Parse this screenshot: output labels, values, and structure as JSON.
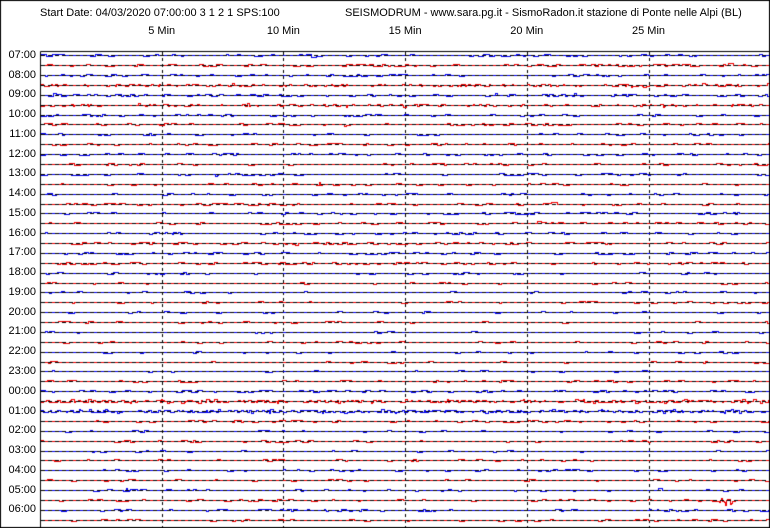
{
  "header": {
    "start_date": "Start Date: 04/03/2020 07:00:00 3 1 2 1 SPS:100",
    "title": "SEISMODRUM - www.sara.pg.it - SismoRadon.it stazione di Ponte nelle Alpi (BL)"
  },
  "chart_data": {
    "type": "line",
    "chart_kind": "helicorder-seismic-drum",
    "title": "SEISMODRUM - www.sara.pg.it - SismoRadon.it stazione di Ponte nelle Alpi (BL)",
    "start_date_line": "Start Date: 04/03/2020 07:00:00 3 1 2 1 SPS:100",
    "minutes_per_row": 30,
    "x_tick_minutes": [
      5,
      10,
      15,
      20,
      25
    ],
    "x_tick_labels": [
      "5 Min",
      "10 Min",
      "15 Min",
      "20 Min",
      "25 Min"
    ],
    "grid": "dashed",
    "colors": {
      "even_row_trace": "#0000ee",
      "odd_row_trace": "#ee0000",
      "grid_and_text": "#000000",
      "background": "#ffffff"
    },
    "rows": [
      {
        "time": "07:00",
        "label": "07:00",
        "color": "blue",
        "density": 0.65,
        "amp": 1.4,
        "bursts": [
          [
            24.7,
            2,
            1.5
          ],
          [
            4.5,
            1.5,
            0.8
          ]
        ]
      },
      {
        "time": "07:30",
        "label": "",
        "color": "red",
        "density": 0.7,
        "amp": 1.6,
        "bursts": [
          [
            16.6,
            2.5,
            0.3
          ]
        ]
      },
      {
        "time": "08:00",
        "label": "08:00",
        "color": "blue",
        "density": 0.6,
        "amp": 1.5,
        "bursts": [
          [
            4.5,
            2,
            0.8
          ],
          [
            23,
            2,
            1.2
          ]
        ]
      },
      {
        "time": "08:30",
        "label": "",
        "color": "red",
        "density": 0.75,
        "amp": 1.7,
        "bursts": [
          [
            12.3,
            2.5,
            0.4
          ]
        ]
      },
      {
        "time": "09:00",
        "label": "09:00",
        "color": "blue",
        "density": 0.7,
        "amp": 1.5,
        "bursts": []
      },
      {
        "time": "09:30",
        "label": "",
        "color": "red",
        "density": 0.7,
        "amp": 1.7,
        "bursts": [
          [
            12.6,
            4,
            0.15
          ]
        ]
      },
      {
        "time": "10:00",
        "label": "10:00",
        "color": "blue",
        "density": 0.5,
        "amp": 1.3,
        "bursts": [
          [
            2.5,
            2,
            0.3
          ],
          [
            11.1,
            2.5,
            0.2
          ]
        ]
      },
      {
        "time": "10:30",
        "label": "",
        "color": "red",
        "density": 0.5,
        "amp": 1.4,
        "bursts": [
          [
            20,
            2,
            0.3
          ]
        ]
      },
      {
        "time": "11:00",
        "label": "11:00",
        "color": "blue",
        "density": 0.45,
        "amp": 1.3,
        "bursts": []
      },
      {
        "time": "11:30",
        "label": "",
        "color": "red",
        "density": 0.45,
        "amp": 1.3,
        "bursts": []
      },
      {
        "time": "12:00",
        "label": "12:00",
        "color": "blue",
        "density": 0.45,
        "amp": 1.3,
        "bursts": [
          [
            6.2,
            2.5,
            0.3
          ]
        ]
      },
      {
        "time": "12:30",
        "label": "",
        "color": "red",
        "density": 0.4,
        "amp": 1.3,
        "bursts": [
          [
            10.2,
            2,
            0.2
          ]
        ]
      },
      {
        "time": "13:00",
        "label": "13:00",
        "color": "blue",
        "density": 0.45,
        "amp": 1.3,
        "bursts": [
          [
            7.2,
            2,
            0.3
          ]
        ]
      },
      {
        "time": "13:30",
        "label": "",
        "color": "red",
        "density": 0.4,
        "amp": 1.3,
        "bursts": [
          [
            11.4,
            4,
            0.15
          ]
        ]
      },
      {
        "time": "14:00",
        "label": "14:00",
        "color": "blue",
        "density": 0.45,
        "amp": 1.3,
        "bursts": [
          [
            1.0,
            3,
            0.15
          ]
        ]
      },
      {
        "time": "14:30",
        "label": "",
        "color": "red",
        "density": 0.45,
        "amp": 1.4,
        "bursts": [
          [
            8.2,
            2,
            0.25
          ]
        ]
      },
      {
        "time": "15:00",
        "label": "15:00",
        "color": "blue",
        "density": 0.5,
        "amp": 1.4,
        "bursts": [
          [
            8.6,
            2,
            0.4
          ],
          [
            11.9,
            2,
            0.3
          ]
        ]
      },
      {
        "time": "15:30",
        "label": "",
        "color": "red",
        "density": 0.55,
        "amp": 1.5,
        "bursts": []
      },
      {
        "time": "16:00",
        "label": "16:00",
        "color": "blue",
        "density": 0.55,
        "amp": 1.5,
        "bursts": [
          [
            5.3,
            2.5,
            0.5
          ]
        ]
      },
      {
        "time": "16:30",
        "label": "",
        "color": "red",
        "density": 0.6,
        "amp": 1.6,
        "bursts": [
          [
            4.5,
            2,
            0.6
          ],
          [
            8,
            2,
            0.8
          ]
        ]
      },
      {
        "time": "17:00",
        "label": "17:00",
        "color": "blue",
        "density": 0.6,
        "amp": 1.5,
        "bursts": [
          [
            27,
            2,
            0.8
          ]
        ]
      },
      {
        "time": "17:30",
        "label": "",
        "color": "red",
        "density": 0.6,
        "amp": 1.6,
        "bursts": [
          [
            2.9,
            2.5,
            0.5
          ],
          [
            11,
            2.5,
            1.6
          ]
        ]
      },
      {
        "time": "18:00",
        "label": "18:00",
        "color": "blue",
        "density": 0.4,
        "amp": 1.3,
        "bursts": [
          [
            5.9,
            3,
            0.2
          ]
        ]
      },
      {
        "time": "18:30",
        "label": "",
        "color": "red",
        "density": 0.3,
        "amp": 1.2,
        "bursts": []
      },
      {
        "time": "19:00",
        "label": "19:00",
        "color": "blue",
        "density": 0.3,
        "amp": 1.2,
        "bursts": [
          [
            6.0,
            3.5,
            0.2
          ]
        ]
      },
      {
        "time": "19:30",
        "label": "",
        "color": "red",
        "density": 0.3,
        "amp": 1.2,
        "bursts": []
      },
      {
        "time": "20:00",
        "label": "20:00",
        "color": "blue",
        "density": 0.18,
        "amp": 1.1,
        "bursts": []
      },
      {
        "time": "20:30",
        "label": "",
        "color": "red",
        "density": 0.18,
        "amp": 1.1,
        "bursts": []
      },
      {
        "time": "21:00",
        "label": "21:00",
        "color": "blue",
        "density": 0.18,
        "amp": 1.1,
        "bursts": []
      },
      {
        "time": "21:30",
        "label": "",
        "color": "red",
        "density": 0.2,
        "amp": 1.1,
        "bursts": [
          [
            5.5,
            2,
            0.3
          ]
        ]
      },
      {
        "time": "22:00",
        "label": "22:00",
        "color": "blue",
        "density": 0.2,
        "amp": 1.1,
        "bursts": [
          [
            6.2,
            2,
            0.3
          ]
        ]
      },
      {
        "time": "22:30",
        "label": "",
        "color": "red",
        "density": 0.2,
        "amp": 1.1,
        "bursts": [
          [
            7.0,
            2,
            0.2
          ]
        ]
      },
      {
        "time": "23:00",
        "label": "23:00",
        "color": "blue",
        "density": 0.18,
        "amp": 1.1,
        "bursts": [
          [
            8.8,
            1.5,
            0.3
          ]
        ]
      },
      {
        "time": "23:30",
        "label": "",
        "color": "red",
        "density": 0.3,
        "amp": 1.2,
        "bursts": [
          [
            6,
            1.5,
            0.5
          ],
          [
            16.2,
            2,
            0.6
          ],
          [
            22.9,
            2,
            0.2
          ]
        ]
      },
      {
        "time": "00:00",
        "label": "00:00",
        "color": "blue",
        "density": 0.7,
        "amp": 1.5,
        "bursts": [
          [
            2,
            2,
            0.5
          ]
        ]
      },
      {
        "time": "00:30",
        "label": "",
        "color": "red",
        "density": 1.0,
        "amp": 1.9,
        "bursts": []
      },
      {
        "time": "01:00",
        "label": "01:00",
        "color": "blue",
        "density": 1.0,
        "amp": 1.9,
        "bursts": []
      },
      {
        "time": "01:30",
        "label": "",
        "color": "red",
        "density": 0.4,
        "amp": 1.3,
        "bursts": [
          [
            21.2,
            2,
            0.4
          ]
        ]
      },
      {
        "time": "02:00",
        "label": "02:00",
        "color": "blue",
        "density": 0.25,
        "amp": 1.2,
        "bursts": [
          [
            4.2,
            1.5,
            0.8
          ],
          [
            9.2,
            1.5,
            1.4
          ],
          [
            27.5,
            1.5,
            0.3
          ],
          [
            29.7,
            2,
            0.5
          ]
        ]
      },
      {
        "time": "02:30",
        "label": "",
        "color": "red",
        "density": 0.3,
        "amp": 1.2,
        "bursts": [
          [
            10.7,
            2,
            0.4
          ],
          [
            30,
            1.5,
            0.3
          ]
        ]
      },
      {
        "time": "03:00",
        "label": "03:00",
        "color": "blue",
        "density": 0.18,
        "amp": 1.1,
        "bursts": []
      },
      {
        "time": "03:30",
        "label": "",
        "color": "red",
        "density": 0.25,
        "amp": 1.2,
        "bursts": [
          [
            5.5,
            1.5,
            0.5
          ],
          [
            11.5,
            1.5,
            0.3
          ]
        ]
      },
      {
        "time": "04:00",
        "label": "04:00",
        "color": "blue",
        "density": 0.25,
        "amp": 1.2,
        "bursts": [
          [
            0.2,
            2.5,
            0.15
          ],
          [
            10.5,
            1.5,
            0.8
          ]
        ]
      },
      {
        "time": "04:30",
        "label": "",
        "color": "red",
        "density": 0.3,
        "amp": 1.2,
        "bursts": [
          [
            6.7,
            1.5,
            0.4
          ],
          [
            11.9,
            1.5,
            0.7
          ]
        ]
      },
      {
        "time": "05:00",
        "label": "05:00",
        "color": "blue",
        "density": 0.35,
        "amp": 1.3,
        "bursts": [
          [
            3.5,
            3,
            0.5
          ],
          [
            6.1,
            1.5,
            0.3
          ],
          [
            10.4,
            2,
            1.2
          ]
        ]
      },
      {
        "time": "05:30",
        "label": "",
        "color": "red",
        "density": 0.35,
        "amp": 1.3,
        "bursts": [
          [
            28.1,
            9,
            0.35
          ],
          [
            29,
            1.5,
            0.6
          ]
        ]
      },
      {
        "time": "06:00",
        "label": "06:00",
        "color": "blue",
        "density": 0.4,
        "amp": 1.4,
        "bursts": [
          [
            11.7,
            2,
            1.8
          ],
          [
            25.9,
            2.5,
            1.2
          ]
        ]
      },
      {
        "time": "06:30",
        "label": "",
        "color": "red",
        "density": 0.35,
        "amp": 1.3,
        "bursts": [
          [
            3,
            1.5,
            0.8
          ]
        ]
      }
    ]
  }
}
